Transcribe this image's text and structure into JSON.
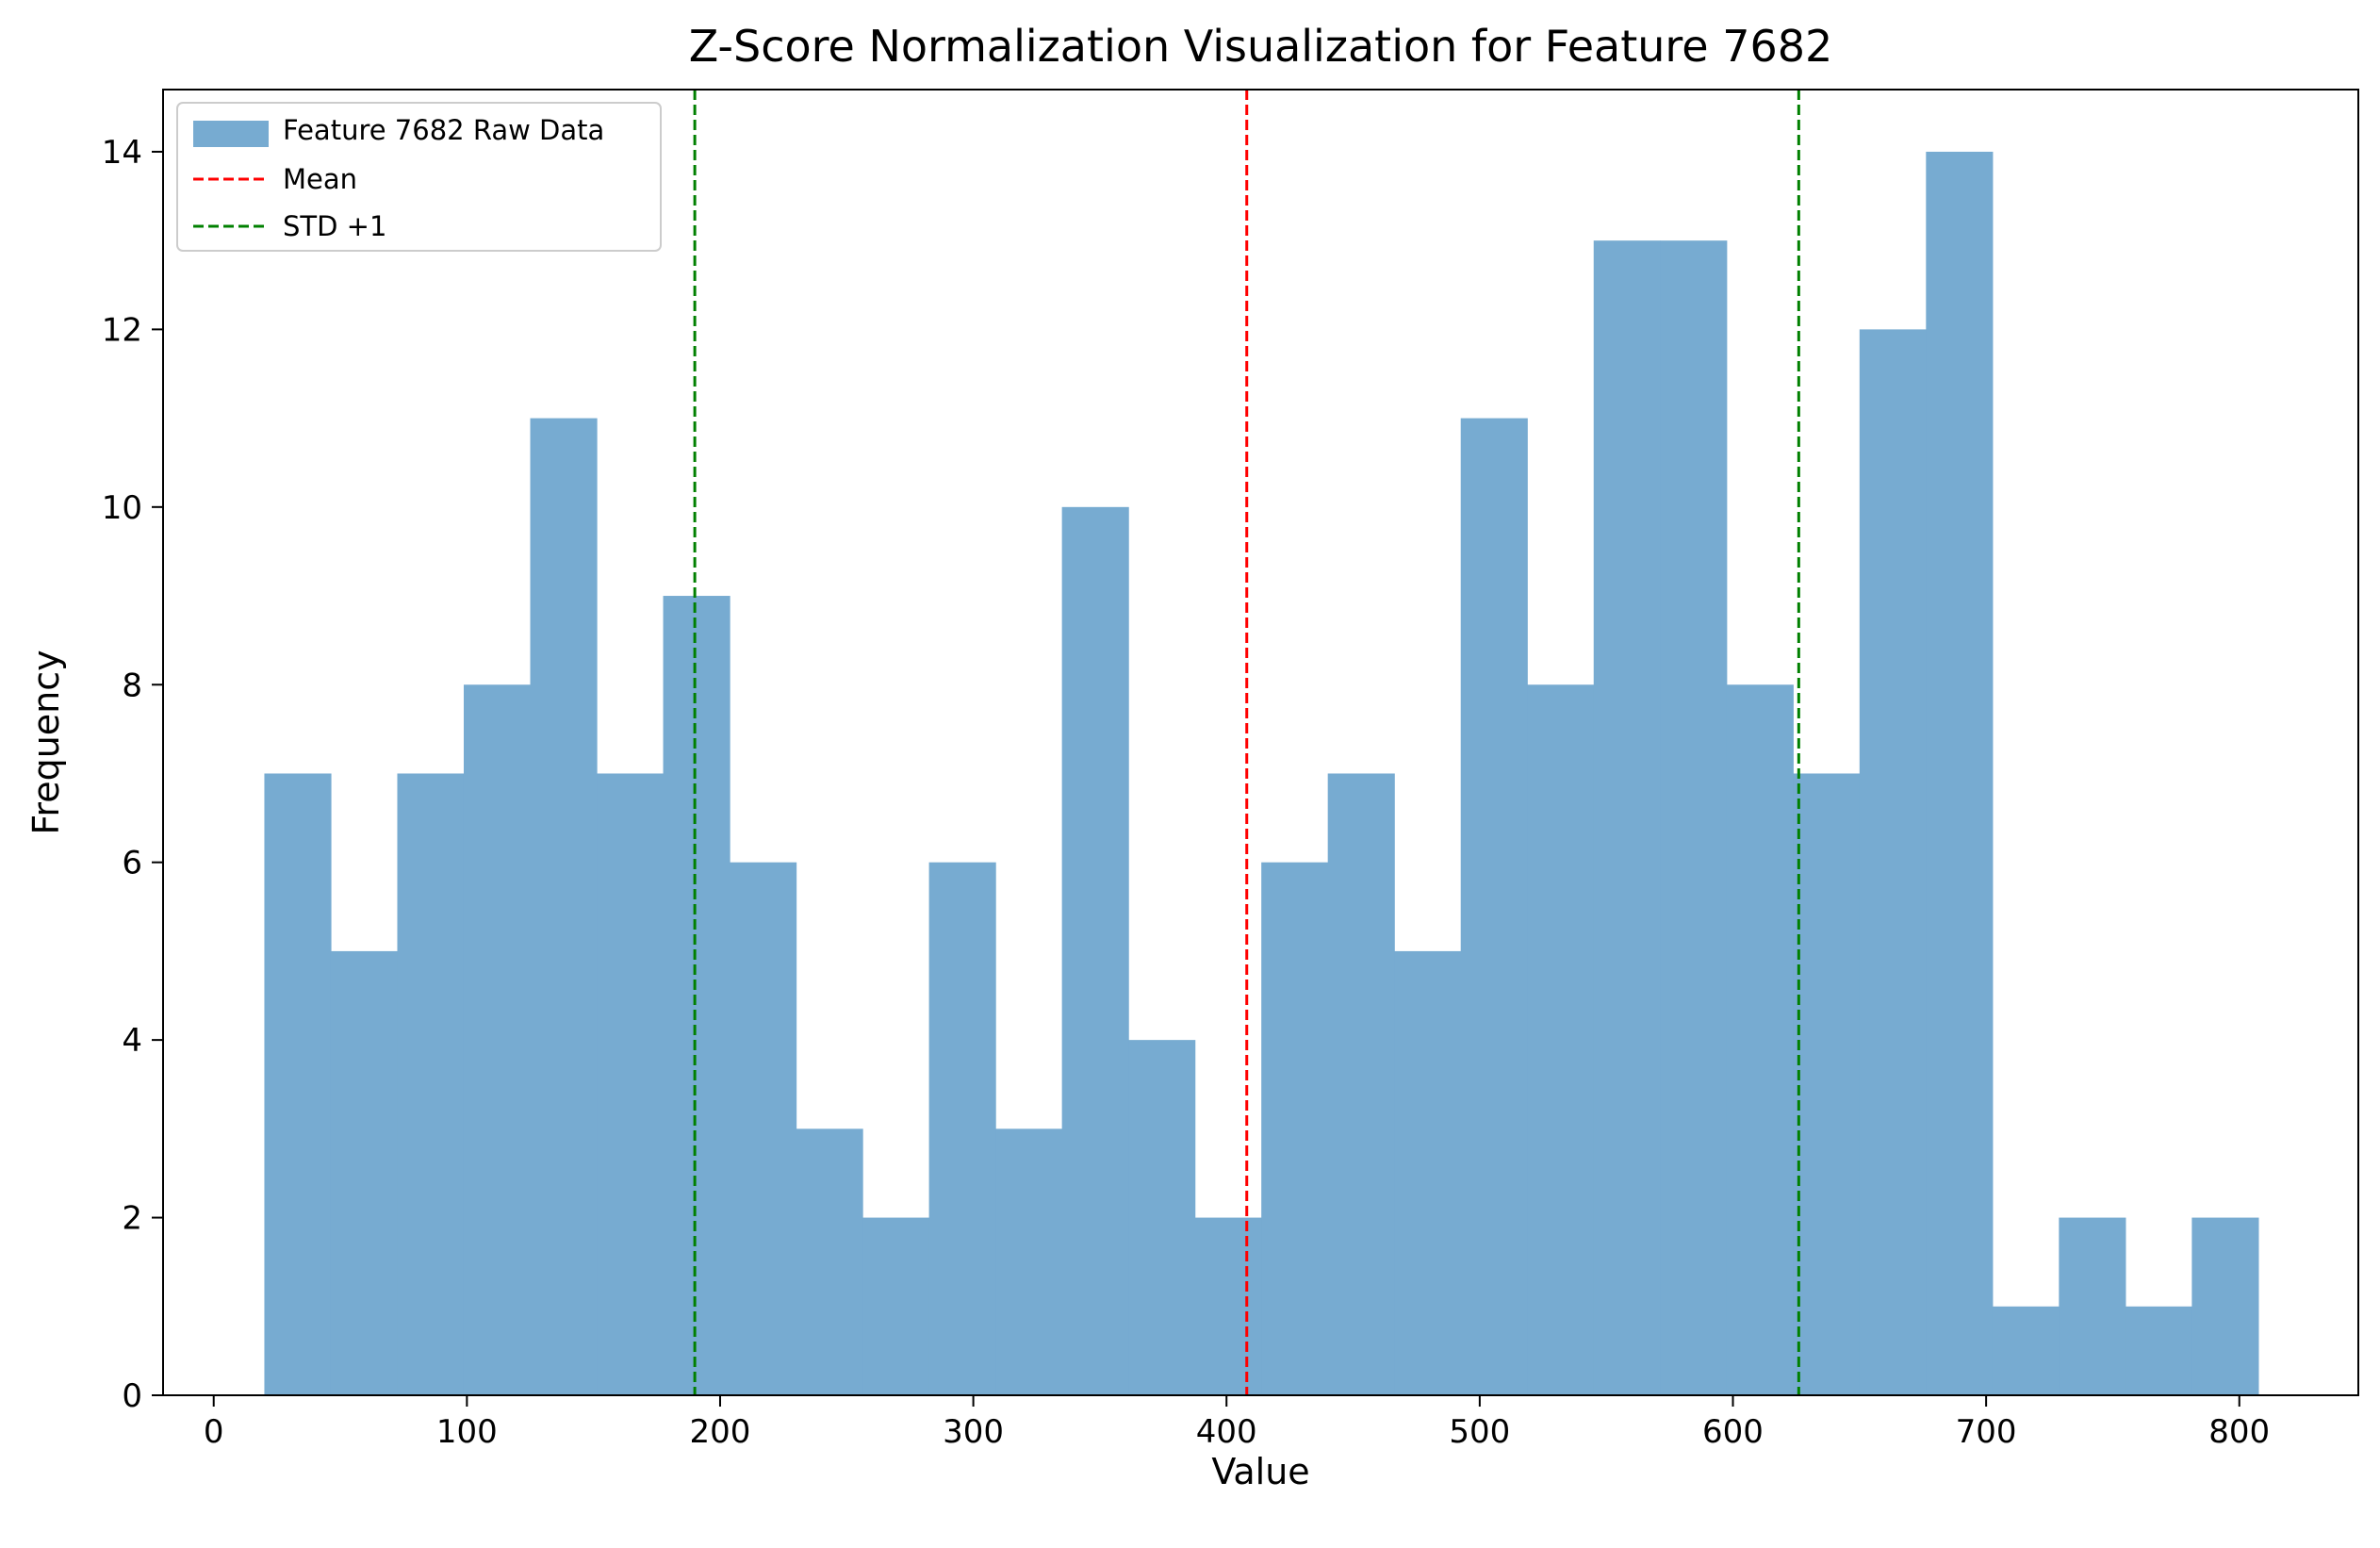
{
  "chart_data": {
    "type": "bar",
    "title": "Z-Score Normalization Visualization for Feature 7682",
    "xlabel": "Value",
    "ylabel": "Frequency",
    "xlim": [
      -20,
      847
    ],
    "ylim": [
      0,
      14.7
    ],
    "xticks": [
      0,
      100,
      200,
      300,
      400,
      500,
      600,
      700,
      800
    ],
    "yticks": [
      0,
      2,
      4,
      6,
      8,
      10,
      12,
      14
    ],
    "grid": false,
    "legend_position": "top-left",
    "bins": {
      "start": 20,
      "width": 26.25,
      "counts": [
        7,
        5,
        7,
        8,
        11,
        7,
        9,
        6,
        3,
        2,
        6,
        3,
        10,
        4,
        2,
        6,
        7,
        5,
        11,
        8,
        13,
        13,
        8,
        7,
        12,
        14,
        1,
        2,
        1,
        2
      ]
    },
    "series": [
      {
        "name": "Feature 7682 Raw Data",
        "kind": "histogram",
        "color": "#77abd1"
      },
      {
        "name": "Mean",
        "kind": "vline",
        "x": 408,
        "color": "#ff0000",
        "style": "dashed"
      },
      {
        "name": "STD +1",
        "kind": "vline",
        "x": [
          190,
          626
        ],
        "color": "#008000",
        "style": "dashed"
      }
    ]
  }
}
